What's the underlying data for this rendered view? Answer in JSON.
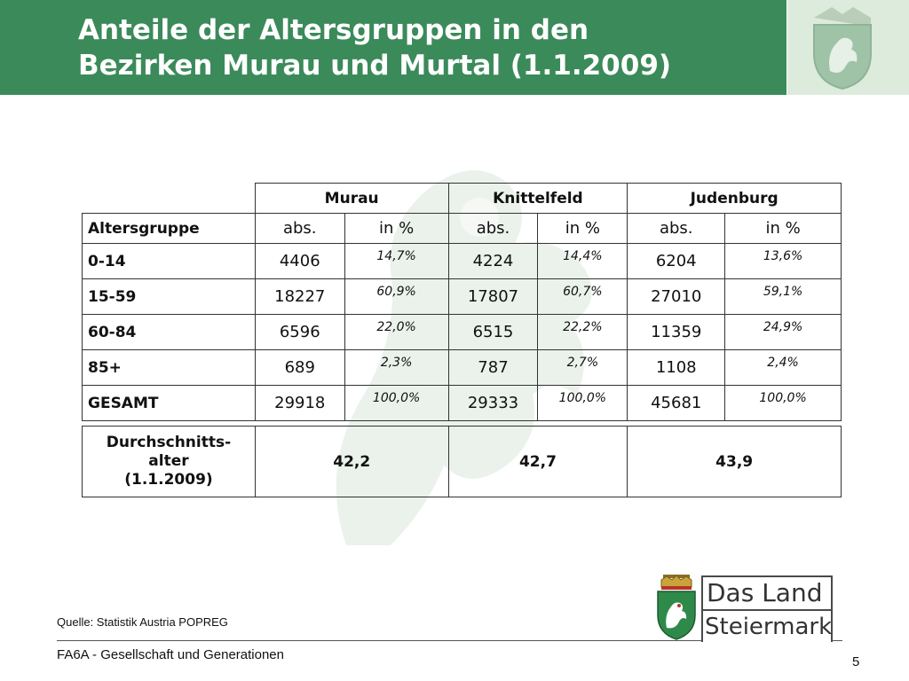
{
  "title_line1": "Anteile der Altersgruppen in den",
  "title_line2": "Bezirken Murau und Murtal (1.1.2009)",
  "districts": [
    "Murau",
    "Knittelfeld",
    "Judenburg"
  ],
  "table": {
    "row_header": "Altersgruppe",
    "sub_headers": [
      "abs.",
      "in %",
      "abs.",
      "in %",
      "abs.",
      "in %"
    ],
    "rows": [
      {
        "label": "0-14",
        "cells": [
          "4406",
          "14,7%",
          "4224",
          "14,4%",
          "6204",
          "13,6%"
        ]
      },
      {
        "label": "15-59",
        "cells": [
          "18227",
          "60,9%",
          "17807",
          "60,7%",
          "27010",
          "59,1%"
        ]
      },
      {
        "label": "60-84",
        "cells": [
          "6596",
          "22,0%",
          "6515",
          "22,2%",
          "11359",
          "24,9%"
        ]
      },
      {
        "label": "85+",
        "cells": [
          "689",
          "2,3%",
          "787",
          "2,7%",
          "1108",
          "2,4%"
        ]
      },
      {
        "label": "GESAMT",
        "cells": [
          "29918",
          "100,0%",
          "29333",
          "100,0%",
          "45681",
          "100,0%"
        ]
      }
    ]
  },
  "average": {
    "label_line1": "Durchschnitts-",
    "label_line2": "alter",
    "label_line3": "(1.1.2009)",
    "values": [
      "42,2",
      "42,7",
      "43,9"
    ]
  },
  "source": "Quelle: Statistik Austria POPREG",
  "footer": "FA6A - Gesellschaft und Generationen",
  "page_number": "5",
  "logo": {
    "line1": "Das Land",
    "line2": "Steiermark"
  },
  "colors": {
    "header_green": "#3b8a5a",
    "crest_green": "#2f8a4a"
  }
}
